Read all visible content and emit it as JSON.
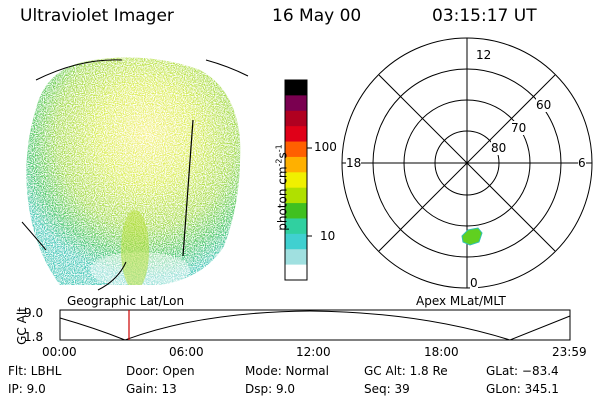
{
  "header": {
    "instrument": "Ultraviolet Imager",
    "date": "16 May 00",
    "time": "03:15:17 UT"
  },
  "colorbar": {
    "unit_label": "photon cm",
    "unit_sup1": "-2",
    "unit_mid": "s",
    "unit_sup2": "-1",
    "ticks": [
      "100",
      "10"
    ],
    "colors": [
      "#000000",
      "#7a0050",
      "#b00020",
      "#e00018",
      "#ff6000",
      "#ffb000",
      "#f0f000",
      "#b0e000",
      "#40c020",
      "#30d0a0",
      "#40d0d0",
      "#a0e0e0",
      "#ffffff"
    ]
  },
  "polar_plot": {
    "mlt_labels": {
      "top": "12",
      "bottom": "0",
      "left": "18",
      "right": "6"
    },
    "lat_labels": [
      "60",
      "70",
      "80"
    ]
  },
  "timeline": {
    "y_axis_label": "GC Alt",
    "y_ticks": [
      "9.0",
      "1.8"
    ],
    "left_caption": "Geographic Lat/Lon",
    "right_caption": "Apex MLat/MLT",
    "x_ticks": [
      "00:00",
      "06:00",
      "12:00",
      "18:00",
      "23:59"
    ],
    "marker_color": "#cc0000"
  },
  "status": {
    "flt": "Flt: LBHL",
    "ip": "IP:  9.0",
    "door": "Door: Open",
    "gain": "Gain: 13",
    "mode": "Mode: Normal",
    "dsp": "Dsp:    9.0",
    "gc_alt": "GC Alt: 1.8 Re",
    "seq": "Seq: 39",
    "glat": "GLat: −83.4",
    "glon": "GLon: 345.1"
  }
}
